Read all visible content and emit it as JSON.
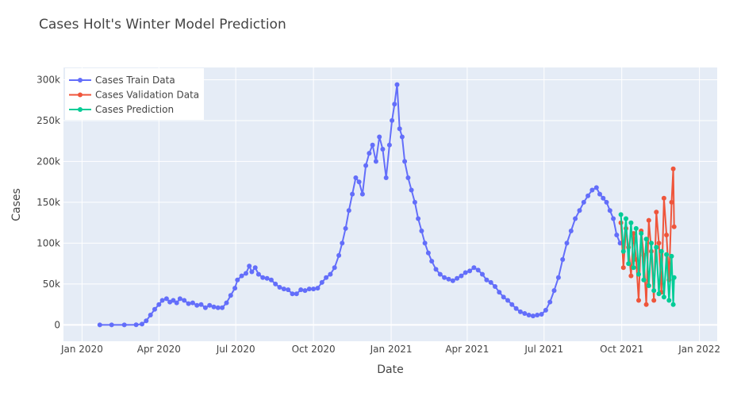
{
  "chart_data": {
    "type": "line",
    "title": "Cases Holt's Winter Model Prediction",
    "xlabel": "Date",
    "ylabel": "Cases",
    "xlim": [
      "2019-12-10",
      "2022-01-22"
    ],
    "ylim": [
      -20000,
      315000
    ],
    "x_ticks": [
      {
        "date": "2020-01-01",
        "label": "Jan 2020"
      },
      {
        "date": "2020-04-01",
        "label": "Apr 2020"
      },
      {
        "date": "2020-07-01",
        "label": "Jul 2020"
      },
      {
        "date": "2020-10-01",
        "label": "Oct 2020"
      },
      {
        "date": "2021-01-01",
        "label": "Jan 2021"
      },
      {
        "date": "2021-04-01",
        "label": "Apr 2021"
      },
      {
        "date": "2021-07-01",
        "label": "Jul 2021"
      },
      {
        "date": "2021-10-01",
        "label": "Oct 2021"
      },
      {
        "date": "2022-01-01",
        "label": "Jan 2022"
      }
    ],
    "y_ticks": [
      {
        "value": 0,
        "label": "0"
      },
      {
        "value": 50000,
        "label": "50k"
      },
      {
        "value": 100000,
        "label": "100k"
      },
      {
        "value": 150000,
        "label": "150k"
      },
      {
        "value": 200000,
        "label": "200k"
      },
      {
        "value": 250000,
        "label": "250k"
      },
      {
        "value": 300000,
        "label": "300k"
      }
    ],
    "legend_position": "top-left",
    "grid": true,
    "series": [
      {
        "name": "Cases Train Data",
        "color": "#636efa",
        "points": [
          [
            "2020-01-22",
            0
          ],
          [
            "2020-02-05",
            0
          ],
          [
            "2020-02-20",
            0
          ],
          [
            "2020-03-05",
            200
          ],
          [
            "2020-03-12",
            1000
          ],
          [
            "2020-03-17",
            5000
          ],
          [
            "2020-03-22",
            12000
          ],
          [
            "2020-03-27",
            19000
          ],
          [
            "2020-04-01",
            25000
          ],
          [
            "2020-04-05",
            30000
          ],
          [
            "2020-04-10",
            32000
          ],
          [
            "2020-04-14",
            28000
          ],
          [
            "2020-04-18",
            30000
          ],
          [
            "2020-04-22",
            27000
          ],
          [
            "2020-04-26",
            32000
          ],
          [
            "2020-05-01",
            30000
          ],
          [
            "2020-05-06",
            26000
          ],
          [
            "2020-05-11",
            27000
          ],
          [
            "2020-05-16",
            24000
          ],
          [
            "2020-05-21",
            25000
          ],
          [
            "2020-05-26",
            21000
          ],
          [
            "2020-05-31",
            24000
          ],
          [
            "2020-06-05",
            22000
          ],
          [
            "2020-06-10",
            21000
          ],
          [
            "2020-06-15",
            21000
          ],
          [
            "2020-06-20",
            27000
          ],
          [
            "2020-06-25",
            36000
          ],
          [
            "2020-06-30",
            45000
          ],
          [
            "2020-07-03",
            55000
          ],
          [
            "2020-07-08",
            60000
          ],
          [
            "2020-07-13",
            63000
          ],
          [
            "2020-07-17",
            72000
          ],
          [
            "2020-07-20",
            65000
          ],
          [
            "2020-07-24",
            70000
          ],
          [
            "2020-07-28",
            62000
          ],
          [
            "2020-08-02",
            58000
          ],
          [
            "2020-08-07",
            57000
          ],
          [
            "2020-08-12",
            55000
          ],
          [
            "2020-08-17",
            50000
          ],
          [
            "2020-08-22",
            46000
          ],
          [
            "2020-08-27",
            44000
          ],
          [
            "2020-09-01",
            43000
          ],
          [
            "2020-09-06",
            38000
          ],
          [
            "2020-09-11",
            38000
          ],
          [
            "2020-09-16",
            43000
          ],
          [
            "2020-09-21",
            42000
          ],
          [
            "2020-09-26",
            44000
          ],
          [
            "2020-10-01",
            44000
          ],
          [
            "2020-10-06",
            45000
          ],
          [
            "2020-10-11",
            52000
          ],
          [
            "2020-10-16",
            58000
          ],
          [
            "2020-10-21",
            62000
          ],
          [
            "2020-10-26",
            70000
          ],
          [
            "2020-10-31",
            85000
          ],
          [
            "2020-11-04",
            100000
          ],
          [
            "2020-11-08",
            118000
          ],
          [
            "2020-11-12",
            140000
          ],
          [
            "2020-11-16",
            160000
          ],
          [
            "2020-11-20",
            180000
          ],
          [
            "2020-11-24",
            175000
          ],
          [
            "2020-11-28",
            160000
          ],
          [
            "2020-12-02",
            195000
          ],
          [
            "2020-12-06",
            210000
          ],
          [
            "2020-12-10",
            220000
          ],
          [
            "2020-12-14",
            200000
          ],
          [
            "2020-12-18",
            230000
          ],
          [
            "2020-12-22",
            215000
          ],
          [
            "2020-12-26",
            180000
          ],
          [
            "2020-12-30",
            220000
          ],
          [
            "2021-01-02",
            250000
          ],
          [
            "2021-01-05",
            270000
          ],
          [
            "2021-01-08",
            294000
          ],
          [
            "2021-01-11",
            240000
          ],
          [
            "2021-01-14",
            230000
          ],
          [
            "2021-01-17",
            200000
          ],
          [
            "2021-01-21",
            180000
          ],
          [
            "2021-01-25",
            165000
          ],
          [
            "2021-01-29",
            150000
          ],
          [
            "2021-02-02",
            130000
          ],
          [
            "2021-02-06",
            115000
          ],
          [
            "2021-02-10",
            100000
          ],
          [
            "2021-02-14",
            88000
          ],
          [
            "2021-02-18",
            78000
          ],
          [
            "2021-02-23",
            68000
          ],
          [
            "2021-02-28",
            62000
          ],
          [
            "2021-03-05",
            58000
          ],
          [
            "2021-03-10",
            56000
          ],
          [
            "2021-03-15",
            54000
          ],
          [
            "2021-03-20",
            57000
          ],
          [
            "2021-03-25",
            60000
          ],
          [
            "2021-03-30",
            64000
          ],
          [
            "2021-04-04",
            66000
          ],
          [
            "2021-04-09",
            70000
          ],
          [
            "2021-04-14",
            67000
          ],
          [
            "2021-04-19",
            62000
          ],
          [
            "2021-04-24",
            55000
          ],
          [
            "2021-04-29",
            52000
          ],
          [
            "2021-05-04",
            47000
          ],
          [
            "2021-05-09",
            40000
          ],
          [
            "2021-05-14",
            34000
          ],
          [
            "2021-05-19",
            30000
          ],
          [
            "2021-05-24",
            25000
          ],
          [
            "2021-05-29",
            20000
          ],
          [
            "2021-06-03",
            16000
          ],
          [
            "2021-06-08",
            14000
          ],
          [
            "2021-06-13",
            12000
          ],
          [
            "2021-06-18",
            11000
          ],
          [
            "2021-06-23",
            12000
          ],
          [
            "2021-06-28",
            13000
          ],
          [
            "2021-07-03",
            18000
          ],
          [
            "2021-07-08",
            28000
          ],
          [
            "2021-07-13",
            42000
          ],
          [
            "2021-07-18",
            58000
          ],
          [
            "2021-07-23",
            80000
          ],
          [
            "2021-07-28",
            100000
          ],
          [
            "2021-08-02",
            115000
          ],
          [
            "2021-08-07",
            130000
          ],
          [
            "2021-08-12",
            140000
          ],
          [
            "2021-08-17",
            150000
          ],
          [
            "2021-08-22",
            158000
          ],
          [
            "2021-08-27",
            165000
          ],
          [
            "2021-09-01",
            168000
          ],
          [
            "2021-09-05",
            160000
          ],
          [
            "2021-09-09",
            155000
          ],
          [
            "2021-09-13",
            150000
          ],
          [
            "2021-09-17",
            140000
          ],
          [
            "2021-09-21",
            130000
          ],
          [
            "2021-09-25",
            110000
          ],
          [
            "2021-09-29",
            100000
          ]
        ]
      },
      {
        "name": "Cases Validation Data",
        "color": "#ef553b",
        "points": [
          [
            "2021-09-30",
            125000
          ],
          [
            "2021-10-03",
            70000
          ],
          [
            "2021-10-06",
            118000
          ],
          [
            "2021-10-09",
            95000
          ],
          [
            "2021-10-12",
            60000
          ],
          [
            "2021-10-15",
            112000
          ],
          [
            "2021-10-18",
            80000
          ],
          [
            "2021-10-21",
            30000
          ],
          [
            "2021-10-24",
            115000
          ],
          [
            "2021-10-27",
            85000
          ],
          [
            "2021-10-30",
            25000
          ],
          [
            "2021-11-02",
            128000
          ],
          [
            "2021-11-05",
            90000
          ],
          [
            "2021-11-08",
            30000
          ],
          [
            "2021-11-11",
            138000
          ],
          [
            "2021-11-14",
            100000
          ],
          [
            "2021-11-17",
            40000
          ],
          [
            "2021-11-20",
            155000
          ],
          [
            "2021-11-23",
            110000
          ],
          [
            "2021-11-26",
            55000
          ],
          [
            "2021-11-29",
            150000
          ],
          [
            "2021-12-01",
            191000
          ],
          [
            "2021-12-02",
            120000
          ]
        ]
      },
      {
        "name": "Cases Prediction",
        "color": "#00cc96",
        "points": [
          [
            "2021-09-30",
            135000
          ],
          [
            "2021-10-03",
            90000
          ],
          [
            "2021-10-06",
            130000
          ],
          [
            "2021-10-09",
            75000
          ],
          [
            "2021-10-12",
            125000
          ],
          [
            "2021-10-15",
            70000
          ],
          [
            "2021-10-18",
            118000
          ],
          [
            "2021-10-21",
            62000
          ],
          [
            "2021-10-24",
            112000
          ],
          [
            "2021-10-27",
            55000
          ],
          [
            "2021-10-30",
            105000
          ],
          [
            "2021-11-02",
            48000
          ],
          [
            "2021-11-05",
            100000
          ],
          [
            "2021-11-08",
            42000
          ],
          [
            "2021-11-11",
            95000
          ],
          [
            "2021-11-14",
            38000
          ],
          [
            "2021-11-17",
            90000
          ],
          [
            "2021-11-20",
            34000
          ],
          [
            "2021-11-23",
            86000
          ],
          [
            "2021-11-26",
            30000
          ],
          [
            "2021-11-29",
            84000
          ],
          [
            "2021-12-01",
            25000
          ],
          [
            "2021-12-02",
            58000
          ]
        ]
      }
    ]
  }
}
